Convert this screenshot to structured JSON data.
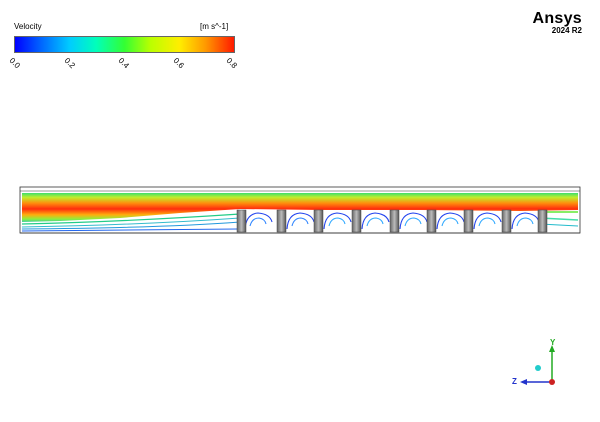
{
  "legend": {
    "title": "Velocity",
    "units": "[m s^-1]",
    "ticks": [
      "0.0",
      "0.2",
      "0.4",
      "0.6",
      "0.8"
    ]
  },
  "brand": {
    "name": "Ansys",
    "version": "2024 R2"
  },
  "axes": {
    "y_label": "Y",
    "z_label": "Z",
    "y_color": "#22aa22",
    "z_color": "#2233cc",
    "x_color": "#cc2222"
  },
  "colors": {
    "low": "#0000ff",
    "mid": "#33ff33",
    "high": "#ff1a00"
  }
}
